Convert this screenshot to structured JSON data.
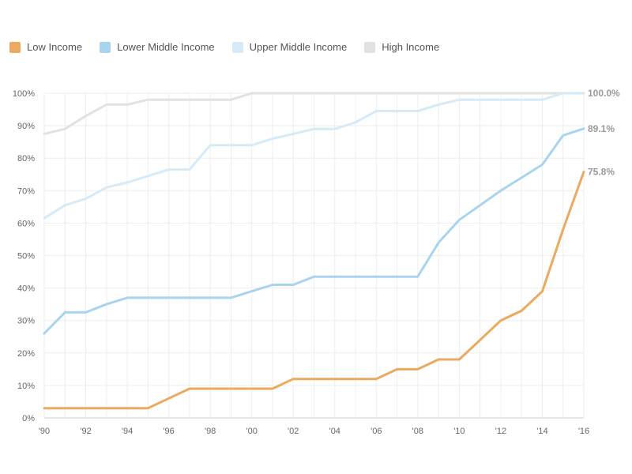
{
  "chart_data": {
    "type": "line",
    "x": [
      1990,
      1991,
      1992,
      1993,
      1994,
      1995,
      1996,
      1997,
      1998,
      1999,
      2000,
      2001,
      2002,
      2003,
      2004,
      2005,
      2006,
      2007,
      2008,
      2009,
      2010,
      2011,
      2012,
      2013,
      2014,
      2015,
      2016
    ],
    "x_tick_labels": [
      "'90",
      "'92",
      "'94",
      "'96",
      "'98",
      "'00",
      "'02",
      "'04",
      "'06",
      "'08",
      "'10",
      "'12",
      "'14",
      "'16"
    ],
    "y_tick_labels": [
      "0%",
      "10%",
      "20%",
      "30%",
      "40%",
      "50%",
      "60%",
      "70%",
      "80%",
      "90%",
      "100%"
    ],
    "ylim": [
      0,
      100
    ],
    "grid": true,
    "legend_position": "top-left",
    "series": [
      {
        "name": "Low Income",
        "color": "#EBAA5F",
        "values": [
          3,
          3,
          3,
          3,
          3,
          3,
          6,
          9,
          9,
          9,
          9,
          9,
          12,
          12,
          12,
          12,
          12,
          15,
          15,
          18,
          18,
          24,
          30,
          33,
          39,
          58,
          75.8
        ],
        "end_label": "75.8%"
      },
      {
        "name": "Lower Middle Income",
        "color": "#A8D4EE",
        "values": [
          26,
          32.5,
          32.5,
          35,
          37,
          37,
          37,
          37,
          37,
          37,
          39,
          41,
          41,
          43.5,
          43.5,
          43.5,
          43.5,
          43.5,
          43.5,
          54,
          61,
          65.5,
          70,
          74,
          78,
          87,
          89.1
        ],
        "end_label": "89.1%"
      },
      {
        "name": "Upper Middle Income",
        "color": "#D6EAF8",
        "values": [
          61.5,
          65.5,
          67.5,
          71,
          72.5,
          74.5,
          76.5,
          76.5,
          84,
          84,
          84,
          86,
          87.5,
          89,
          89,
          91,
          94.5,
          94.5,
          94.5,
          96.5,
          98,
          98,
          98,
          98,
          98,
          100,
          100
        ],
        "end_label": ""
      },
      {
        "name": "High Income",
        "color": "#E2E2E2",
        "values": [
          87.5,
          89,
          93,
          96.5,
          96.5,
          98,
          98,
          98,
          98,
          98,
          100,
          100,
          100,
          100,
          100,
          100,
          100,
          100,
          100,
          100,
          100,
          100,
          100,
          100,
          100,
          100,
          100
        ],
        "end_label": "100.0%"
      }
    ]
  }
}
